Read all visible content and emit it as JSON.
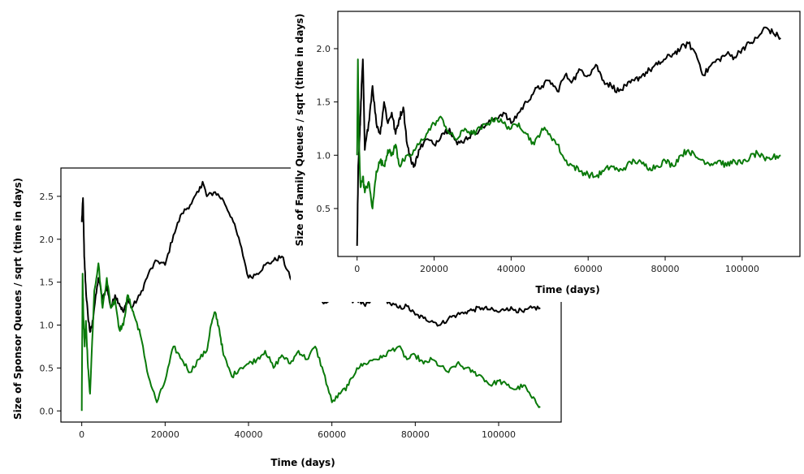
{
  "chart_data": [
    {
      "type": "line",
      "xlabel": "Time (days)",
      "ylabel": "Size of Sponsor Queues / sqrt (time in days)",
      "xlim": [
        -5000,
        115000
      ],
      "ylim": [
        -0.13,
        2.83
      ],
      "xticks": [
        0,
        20000,
        40000,
        60000,
        80000,
        100000
      ],
      "xtick_labels": [
        "0",
        "20000",
        "40000",
        "60000",
        "80000",
        "100000"
      ],
      "yticks": [
        0.0,
        0.5,
        1.0,
        1.5,
        2.0,
        2.5
      ],
      "ytick_labels": [
        "0.0",
        "0.5",
        "1.0",
        "1.5",
        "2.0",
        "2.5"
      ],
      "grid": false,
      "series": [
        {
          "color": "#000000",
          "x": [
            0,
            300,
            600,
            1000,
            1500,
            2000,
            2500,
            3000,
            4000,
            5000,
            6000,
            7000,
            8000,
            9000,
            10000,
            11000,
            12000,
            14000,
            16000,
            18000,
            20000,
            22000,
            24000,
            26000,
            28000,
            29000,
            30000,
            32000,
            34000,
            36000,
            38000,
            40000,
            42000,
            44000,
            46000,
            48000,
            50000,
            52000,
            54000,
            56000,
            58000,
            60000,
            62000,
            64000,
            66000,
            68000,
            70000,
            72000,
            74000,
            76000,
            78000,
            80000,
            82000,
            84000,
            86000,
            88000,
            90000,
            92000,
            94000,
            96000,
            98000,
            100000,
            102000,
            104000,
            106000,
            108000,
            110000
          ],
          "y": [
            2.2,
            2.48,
            1.8,
            1.4,
            1.1,
            0.92,
            1.0,
            1.2,
            1.55,
            1.3,
            1.45,
            1.2,
            1.35,
            1.25,
            1.15,
            1.3,
            1.2,
            1.35,
            1.6,
            1.75,
            1.7,
            2.05,
            2.3,
            2.4,
            2.55,
            2.67,
            2.5,
            2.55,
            2.45,
            2.25,
            1.95,
            1.55,
            1.6,
            1.7,
            1.75,
            1.8,
            1.55,
            1.45,
            1.3,
            1.35,
            1.25,
            1.3,
            1.35,
            1.28,
            1.3,
            1.22,
            1.3,
            1.35,
            1.25,
            1.2,
            1.22,
            1.12,
            1.08,
            1.05,
            1.0,
            1.08,
            1.12,
            1.15,
            1.18,
            1.2,
            1.18,
            1.15,
            1.2,
            1.18,
            1.15,
            1.2,
            1.2
          ]
        },
        {
          "color": "#0a7a0a",
          "x": [
            0,
            200,
            400,
            700,
            1000,
            1500,
            2000,
            3000,
            4000,
            5000,
            6000,
            7000,
            8000,
            9000,
            10000,
            11000,
            12000,
            13000,
            14000,
            16000,
            18000,
            20000,
            22000,
            24000,
            26000,
            28000,
            30000,
            31000,
            32000,
            33000,
            34000,
            36000,
            38000,
            40000,
            42000,
            44000,
            46000,
            48000,
            50000,
            52000,
            54000,
            56000,
            58000,
            60000,
            62000,
            64000,
            66000,
            68000,
            70000,
            72000,
            74000,
            76000,
            78000,
            80000,
            82000,
            84000,
            86000,
            88000,
            90000,
            92000,
            94000,
            96000,
            98000,
            100000,
            102000,
            104000,
            106000,
            108000,
            110000
          ],
          "y": [
            0.0,
            1.6,
            1.1,
            0.75,
            1.05,
            0.5,
            0.2,
            1.4,
            1.72,
            1.2,
            1.55,
            1.2,
            1.3,
            0.95,
            1.0,
            1.35,
            1.2,
            1.05,
            0.9,
            0.4,
            0.1,
            0.35,
            0.75,
            0.6,
            0.45,
            0.6,
            0.7,
            1.0,
            1.15,
            0.95,
            0.65,
            0.4,
            0.5,
            0.55,
            0.6,
            0.7,
            0.5,
            0.65,
            0.55,
            0.7,
            0.6,
            0.75,
            0.45,
            0.1,
            0.2,
            0.3,
            0.5,
            0.55,
            0.6,
            0.62,
            0.7,
            0.75,
            0.6,
            0.65,
            0.55,
            0.6,
            0.52,
            0.45,
            0.55,
            0.5,
            0.45,
            0.4,
            0.3,
            0.35,
            0.3,
            0.25,
            0.3,
            0.15,
            0.05
          ]
        }
      ]
    },
    {
      "type": "line",
      "xlabel": "Time (days)",
      "ylabel": "Size of Family Queues / sqrt (time in days)",
      "xlim": [
        -5000,
        115000
      ],
      "ylim": [
        0.05,
        2.35
      ],
      "xticks": [
        0,
        20000,
        40000,
        60000,
        80000,
        100000
      ],
      "xtick_labels": [
        "0",
        "20000",
        "40000",
        "60000",
        "80000",
        "100000"
      ],
      "yticks": [
        0.5,
        1.0,
        1.5,
        2.0
      ],
      "ytick_labels": [
        "0.5",
        "1.0",
        "1.5",
        "2.0"
      ],
      "grid": false,
      "series": [
        {
          "color": "#000000",
          "x": [
            0,
            300,
            700,
            1000,
            1500,
            2000,
            3000,
            4000,
            5000,
            6000,
            7000,
            8000,
            9000,
            10000,
            11000,
            12000,
            13000,
            14000,
            15000,
            16000,
            18000,
            20000,
            22000,
            24000,
            26000,
            28000,
            30000,
            32000,
            34000,
            36000,
            38000,
            40000,
            42000,
            44000,
            46000,
            48000,
            50000,
            52000,
            54000,
            56000,
            58000,
            60000,
            62000,
            64000,
            66000,
            68000,
            70000,
            72000,
            74000,
            76000,
            78000,
            80000,
            82000,
            84000,
            86000,
            88000,
            90000,
            92000,
            94000,
            96000,
            98000,
            100000,
            102000,
            104000,
            106000,
            108000,
            110000
          ],
          "y": [
            0.15,
            0.9,
            1.2,
            1.5,
            1.9,
            1.05,
            1.3,
            1.65,
            1.3,
            1.2,
            1.5,
            1.3,
            1.4,
            1.2,
            1.35,
            1.45,
            1.1,
            0.95,
            0.9,
            1.05,
            1.15,
            1.1,
            1.2,
            1.25,
            1.1,
            1.15,
            1.2,
            1.25,
            1.3,
            1.35,
            1.4,
            1.3,
            1.4,
            1.5,
            1.6,
            1.65,
            1.7,
            1.6,
            1.75,
            1.7,
            1.8,
            1.75,
            1.85,
            1.7,
            1.65,
            1.6,
            1.65,
            1.7,
            1.75,
            1.8,
            1.85,
            1.9,
            1.95,
            2.0,
            2.05,
            1.95,
            1.75,
            1.85,
            1.9,
            1.95,
            1.92,
            2.0,
            2.05,
            2.1,
            2.2,
            2.15,
            2.1
          ]
        },
        {
          "color": "#0a7a0a",
          "x": [
            0,
            200,
            500,
            900,
            1500,
            2000,
            3000,
            4000,
            5000,
            6000,
            7000,
            8000,
            9000,
            10000,
            11000,
            12000,
            14000,
            16000,
            18000,
            20000,
            22000,
            24000,
            26000,
            28000,
            30000,
            32000,
            34000,
            36000,
            38000,
            40000,
            42000,
            44000,
            46000,
            48000,
            50000,
            52000,
            54000,
            56000,
            58000,
            60000,
            62000,
            64000,
            66000,
            68000,
            70000,
            72000,
            74000,
            76000,
            78000,
            80000,
            82000,
            84000,
            86000,
            88000,
            90000,
            92000,
            94000,
            96000,
            98000,
            100000,
            102000,
            104000,
            106000,
            108000,
            110000
          ],
          "y": [
            1.0,
            1.9,
            1.1,
            0.7,
            0.8,
            0.65,
            0.75,
            0.5,
            0.85,
            0.95,
            0.9,
            1.05,
            1.0,
            1.1,
            0.9,
            0.95,
            1.0,
            1.1,
            1.2,
            1.3,
            1.35,
            1.2,
            1.15,
            1.25,
            1.2,
            1.25,
            1.3,
            1.35,
            1.3,
            1.25,
            1.3,
            1.2,
            1.1,
            1.25,
            1.2,
            1.1,
            0.95,
            0.9,
            0.85,
            0.82,
            0.8,
            0.85,
            0.9,
            0.85,
            0.9,
            0.95,
            0.92,
            0.88,
            0.9,
            0.95,
            0.9,
            1.0,
            1.05,
            0.98,
            0.95,
            0.92,
            0.95,
            0.9,
            0.95,
            0.92,
            0.98,
            1.02,
            0.95,
            0.98,
            1.0
          ]
        }
      ]
    }
  ]
}
